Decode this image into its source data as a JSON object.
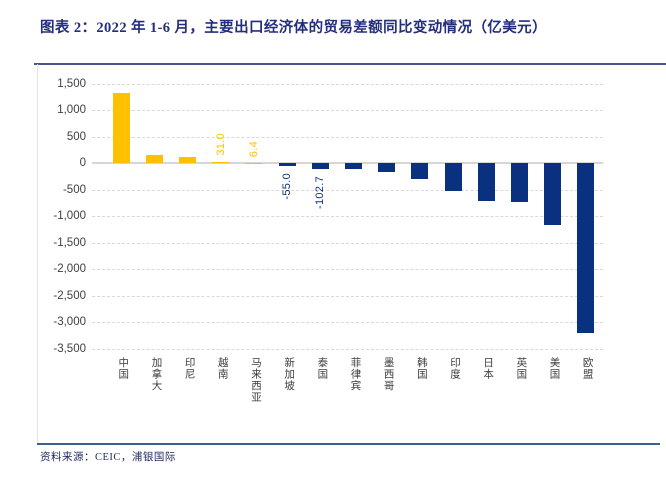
{
  "title": "图表 2：2022 年 1-6 月，主要出口经济体的贸易差额同比变动情况（亿美元）",
  "footer": {
    "source_label": "资料来源：CEIC，浦银国际"
  },
  "colors": {
    "title": "#232e7c",
    "positive_bar": "#ffc000",
    "negative_bar": "#0a3180",
    "top_rule": "#4c5389",
    "bottom_rule": "#3a5f8f",
    "footer_text": "#1f2a5e",
    "grid": "#d9d9d9",
    "axis_text": "#3f3f3f"
  },
  "chart_data": {
    "type": "bar",
    "title": "2022 年 1-6 月，主要出口经济体的贸易差额同比变动情况",
    "unit": "亿美元",
    "categories": [
      "中国",
      "加拿大",
      "印尼",
      "越南",
      "马来西亚",
      "新加坡",
      "泰国",
      "菲律宾",
      "墨西哥",
      "韩国",
      "印度",
      "日本",
      "英国",
      "美国",
      "欧盟"
    ],
    "values": [
      1330,
      150,
      115,
      31.0,
      6.4,
      -55.0,
      -102.7,
      -115,
      -160,
      -290,
      -520,
      -715,
      -720,
      -1170,
      -3200
    ],
    "data_labels": [
      "",
      "",
      "",
      "31.0",
      "6.4",
      "-55.0",
      "-102.7",
      "",
      "",
      "",
      "",
      "",
      "",
      "",
      ""
    ],
    "ylim": [
      -3500,
      1500
    ],
    "ytick_step": 500,
    "grid": "dashed",
    "legend": "none",
    "xlabel": "",
    "ylabel": ""
  }
}
